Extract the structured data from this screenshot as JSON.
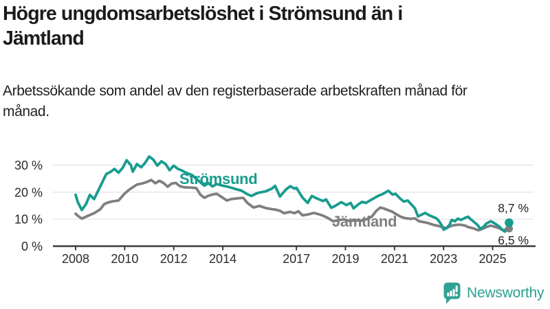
{
  "header": {
    "title": "Högre ungdomsarbetslöshet i Strömsund än i Jämtland",
    "subtitle": "Arbetssökande som andel av den registerbaserade arbetskraften månad för månad."
  },
  "footer": {
    "brand": "Newsworthy",
    "logo_icon": "newsworthy-speech-bubble-bar-chart-icon"
  },
  "colors": {
    "stromsund": "#189c8e",
    "jamtland": "#7f7f7f",
    "grid": "#e4e4e4",
    "axis": "#3b3b3b",
    "tick_text": "#2a2a2a",
    "end_label_text": "#222222",
    "logo_teal": "#2fa292"
  },
  "chart_data": {
    "type": "line",
    "x_unit": "year (decimal; monthly series, values estimated from plot)",
    "ylabel": "",
    "xlabel": "",
    "ytick_suffix": " %",
    "yticks": [
      0,
      10,
      20,
      30
    ],
    "xticks": [
      2008,
      2010,
      2012,
      2014,
      2017,
      2019,
      2021,
      2023,
      2025
    ],
    "xlim": [
      2007.1,
      2026.3
    ],
    "ylim": [
      0,
      36
    ],
    "grid": "horizontal",
    "legend_position": "inline-labels",
    "series": [
      {
        "name": "Strömsund",
        "color": "#189c8e",
        "end_label": "8,7 %",
        "end_value": 8.7,
        "points": [
          [
            2008.0,
            19.0
          ],
          [
            2008.08,
            16.5
          ],
          [
            2008.25,
            13.4
          ],
          [
            2008.42,
            15.5
          ],
          [
            2008.58,
            19.0
          ],
          [
            2008.75,
            17.4
          ],
          [
            2009.0,
            22.0
          ],
          [
            2009.25,
            26.7
          ],
          [
            2009.42,
            27.5
          ],
          [
            2009.58,
            28.6
          ],
          [
            2009.75,
            27.2
          ],
          [
            2009.92,
            29.0
          ],
          [
            2010.08,
            31.8
          ],
          [
            2010.25,
            30.0
          ],
          [
            2010.33,
            27.6
          ],
          [
            2010.5,
            30.4
          ],
          [
            2010.67,
            29.2
          ],
          [
            2010.83,
            30.8
          ],
          [
            2011.0,
            33.2
          ],
          [
            2011.17,
            32.0
          ],
          [
            2011.33,
            29.8
          ],
          [
            2011.5,
            31.4
          ],
          [
            2011.67,
            30.4
          ],
          [
            2011.83,
            28.1
          ],
          [
            2012.0,
            29.8
          ],
          [
            2012.17,
            28.6
          ],
          [
            2012.33,
            28.0
          ],
          [
            2012.5,
            27.2
          ],
          [
            2012.75,
            26.3
          ],
          [
            2013.0,
            24.3
          ],
          [
            2013.25,
            22.4
          ],
          [
            2013.42,
            23.3
          ],
          [
            2013.58,
            22.1
          ],
          [
            2013.75,
            23.0
          ],
          [
            2014.0,
            22.4
          ],
          [
            2014.25,
            21.9
          ],
          [
            2014.5,
            21.2
          ],
          [
            2014.75,
            20.6
          ],
          [
            2015.0,
            19.2
          ],
          [
            2015.17,
            18.6
          ],
          [
            2015.42,
            19.7
          ],
          [
            2015.75,
            20.3
          ],
          [
            2016.0,
            21.3
          ],
          [
            2016.13,
            22.3
          ],
          [
            2016.33,
            18.4
          ],
          [
            2016.58,
            21.0
          ],
          [
            2016.75,
            22.2
          ],
          [
            2016.92,
            21.3
          ],
          [
            2017.0,
            21.6
          ],
          [
            2017.25,
            18.0
          ],
          [
            2017.46,
            16.0
          ],
          [
            2017.63,
            18.6
          ],
          [
            2017.83,
            17.7
          ],
          [
            2018.08,
            16.7
          ],
          [
            2018.21,
            17.3
          ],
          [
            2018.42,
            14.2
          ],
          [
            2018.58,
            14.9
          ],
          [
            2018.83,
            16.3
          ],
          [
            2019.04,
            15.2
          ],
          [
            2019.21,
            16.0
          ],
          [
            2019.33,
            14.0
          ],
          [
            2019.5,
            15.3
          ],
          [
            2019.67,
            16.4
          ],
          [
            2019.83,
            16.0
          ],
          [
            2020.08,
            17.3
          ],
          [
            2020.33,
            18.6
          ],
          [
            2020.5,
            19.2
          ],
          [
            2020.75,
            20.5
          ],
          [
            2020.92,
            19.1
          ],
          [
            2021.04,
            19.4
          ],
          [
            2021.21,
            17.8
          ],
          [
            2021.38,
            16.5
          ],
          [
            2021.54,
            16.9
          ],
          [
            2021.71,
            15.2
          ],
          [
            2021.83,
            14.0
          ],
          [
            2021.96,
            11.0
          ],
          [
            2022.13,
            11.8
          ],
          [
            2022.25,
            12.3
          ],
          [
            2022.42,
            11.4
          ],
          [
            2022.58,
            10.8
          ],
          [
            2022.71,
            10.3
          ],
          [
            2022.83,
            9.1
          ],
          [
            2022.92,
            7.8
          ],
          [
            2023.0,
            6.1
          ],
          [
            2023.13,
            6.7
          ],
          [
            2023.25,
            8.0
          ],
          [
            2023.33,
            9.7
          ],
          [
            2023.46,
            9.2
          ],
          [
            2023.58,
            10.2
          ],
          [
            2023.71,
            9.7
          ],
          [
            2023.88,
            10.5
          ],
          [
            2024.0,
            10.9
          ],
          [
            2024.08,
            10.2
          ],
          [
            2024.21,
            9.2
          ],
          [
            2024.38,
            7.9
          ],
          [
            2024.5,
            6.4
          ],
          [
            2024.63,
            7.2
          ],
          [
            2024.75,
            8.4
          ],
          [
            2024.92,
            9.2
          ],
          [
            2025.0,
            8.9
          ],
          [
            2025.17,
            7.9
          ],
          [
            2025.29,
            7.1
          ],
          [
            2025.42,
            5.9
          ],
          [
            2025.5,
            5.4
          ],
          [
            2025.58,
            6.6
          ],
          [
            2025.67,
            8.7
          ]
        ]
      },
      {
        "name": "Jämtland",
        "color": "#7f7f7f",
        "end_label": "6,5 %",
        "end_value": 6.5,
        "points": [
          [
            2008.0,
            12.0
          ],
          [
            2008.08,
            11.3
          ],
          [
            2008.25,
            10.2
          ],
          [
            2008.5,
            11.2
          ],
          [
            2008.75,
            12.2
          ],
          [
            2009.0,
            13.6
          ],
          [
            2009.17,
            15.6
          ],
          [
            2009.33,
            16.2
          ],
          [
            2009.5,
            16.6
          ],
          [
            2009.75,
            16.9
          ],
          [
            2010.0,
            19.5
          ],
          [
            2010.17,
            20.8
          ],
          [
            2010.33,
            21.8
          ],
          [
            2010.5,
            22.8
          ],
          [
            2010.75,
            23.3
          ],
          [
            2010.92,
            23.8
          ],
          [
            2011.08,
            24.5
          ],
          [
            2011.25,
            23.3
          ],
          [
            2011.42,
            24.2
          ],
          [
            2011.58,
            23.4
          ],
          [
            2011.75,
            22.0
          ],
          [
            2011.92,
            23.2
          ],
          [
            2012.08,
            23.4
          ],
          [
            2012.25,
            22.2
          ],
          [
            2012.42,
            21.8
          ],
          [
            2012.67,
            21.7
          ],
          [
            2012.92,
            21.5
          ],
          [
            2013.08,
            19.1
          ],
          [
            2013.25,
            17.9
          ],
          [
            2013.42,
            18.7
          ],
          [
            2013.58,
            19.1
          ],
          [
            2013.75,
            19.4
          ],
          [
            2013.92,
            18.4
          ],
          [
            2014.17,
            16.9
          ],
          [
            2014.33,
            17.4
          ],
          [
            2014.58,
            17.7
          ],
          [
            2014.83,
            17.9
          ],
          [
            2015.0,
            16.0
          ],
          [
            2015.25,
            14.3
          ],
          [
            2015.5,
            14.9
          ],
          [
            2015.75,
            14.1
          ],
          [
            2016.0,
            13.7
          ],
          [
            2016.17,
            13.5
          ],
          [
            2016.33,
            13.1
          ],
          [
            2016.5,
            12.2
          ],
          [
            2016.75,
            12.7
          ],
          [
            2016.92,
            12.2
          ],
          [
            2017.08,
            12.9
          ],
          [
            2017.25,
            11.4
          ],
          [
            2017.5,
            11.8
          ],
          [
            2017.71,
            12.3
          ],
          [
            2017.92,
            11.8
          ],
          [
            2018.08,
            11.3
          ],
          [
            2018.29,
            10.4
          ],
          [
            2018.5,
            9.2
          ],
          [
            2018.71,
            9.6
          ],
          [
            2018.92,
            9.9
          ],
          [
            2019.17,
            9.3
          ],
          [
            2019.42,
            9.6
          ],
          [
            2019.67,
            9.4
          ],
          [
            2019.92,
            10.2
          ],
          [
            2020.08,
            11.0
          ],
          [
            2020.25,
            13.0
          ],
          [
            2020.42,
            14.3
          ],
          [
            2020.58,
            13.9
          ],
          [
            2020.75,
            13.3
          ],
          [
            2020.92,
            12.7
          ],
          [
            2021.0,
            12.2
          ],
          [
            2021.25,
            10.9
          ],
          [
            2021.42,
            10.4
          ],
          [
            2021.67,
            10.1
          ],
          [
            2021.83,
            10.3
          ],
          [
            2022.0,
            9.2
          ],
          [
            2022.25,
            8.8
          ],
          [
            2022.42,
            8.4
          ],
          [
            2022.58,
            7.9
          ],
          [
            2022.79,
            7.5
          ],
          [
            2022.92,
            7.1
          ],
          [
            2023.08,
            6.7
          ],
          [
            2023.21,
            7.1
          ],
          [
            2023.38,
            7.7
          ],
          [
            2023.54,
            7.9
          ],
          [
            2023.71,
            7.9
          ],
          [
            2023.88,
            7.6
          ],
          [
            2024.0,
            7.1
          ],
          [
            2024.21,
            6.6
          ],
          [
            2024.42,
            5.9
          ],
          [
            2024.58,
            6.4
          ],
          [
            2024.75,
            7.1
          ],
          [
            2024.92,
            7.6
          ],
          [
            2025.08,
            7.2
          ],
          [
            2025.25,
            6.7
          ],
          [
            2025.42,
            5.9
          ],
          [
            2025.54,
            6.2
          ],
          [
            2025.67,
            6.5
          ]
        ]
      }
    ]
  }
}
